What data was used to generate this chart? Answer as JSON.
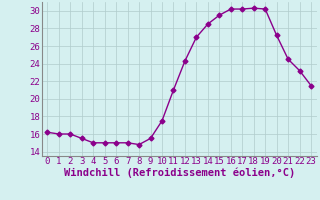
{
  "x": [
    0,
    1,
    2,
    3,
    4,
    5,
    6,
    7,
    8,
    9,
    10,
    11,
    12,
    13,
    14,
    15,
    16,
    17,
    18,
    19,
    20,
    21,
    22,
    23
  ],
  "y": [
    16.2,
    16.0,
    16.0,
    15.5,
    15.0,
    15.0,
    15.0,
    15.0,
    14.8,
    15.5,
    17.5,
    21.0,
    24.3,
    27.0,
    28.5,
    29.5,
    30.2,
    30.2,
    30.3,
    30.2,
    27.2,
    24.5,
    23.2,
    21.5
  ],
  "line_color": "#8b008b",
  "marker": "D",
  "markersize": 2.5,
  "linewidth": 1.0,
  "xlabel": "Windchill (Refroidissement éolien,°C)",
  "xlim": [
    -0.5,
    23.5
  ],
  "ylim": [
    13.5,
    31.0
  ],
  "yticks": [
    14,
    16,
    18,
    20,
    22,
    24,
    26,
    28,
    30
  ],
  "xticks": [
    0,
    1,
    2,
    3,
    4,
    5,
    6,
    7,
    8,
    9,
    10,
    11,
    12,
    13,
    14,
    15,
    16,
    17,
    18,
    19,
    20,
    21,
    22,
    23
  ],
  "xtick_labels": [
    "0",
    "1",
    "2",
    "3",
    "4",
    "5",
    "6",
    "7",
    "8",
    "9",
    "10",
    "11",
    "12",
    "13",
    "14",
    "15",
    "16",
    "17",
    "18",
    "19",
    "20",
    "21",
    "22",
    "23"
  ],
  "bg_color": "#d5f0f0",
  "grid_color": "#b0cccc",
  "tick_fontsize": 6.5,
  "xlabel_fontsize": 7.5
}
